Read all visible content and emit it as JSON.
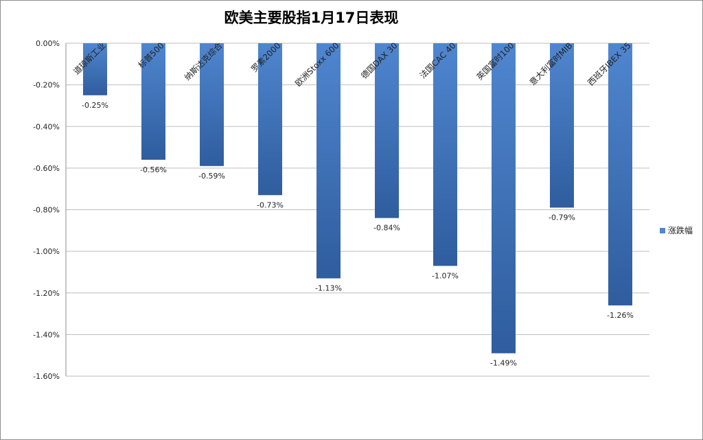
{
  "chart_data": {
    "type": "bar",
    "title": "欧美主要股指1月17日表现",
    "categories": [
      "道琼斯工业",
      "标普500",
      "纳斯达克综合",
      "罗素2000",
      "欧洲Stoxx 600",
      "德国DAX 30",
      "法国CAC 40",
      "英国富时100",
      "意大利富时MIB",
      "西班牙IBEX 35"
    ],
    "series": [
      {
        "name": "涨跌幅",
        "values": [
          -0.25,
          -0.56,
          -0.59,
          -0.73,
          -1.13,
          -0.84,
          -1.07,
          -1.49,
          -0.79,
          -1.26
        ],
        "data_labels": [
          "-0.25%",
          "-0.56%",
          "-0.59%",
          "-0.73%",
          "-1.13%",
          "-0.84%",
          "-1.07%",
          "-1.49%",
          "-0.79%",
          "-1.26%"
        ]
      }
    ],
    "ylim": [
      -1.6,
      0
    ],
    "yticks": [
      0,
      -0.2,
      -0.4,
      -0.6,
      -0.8,
      -1.0,
      -1.2,
      -1.4,
      -1.6
    ],
    "ytick_labels": [
      "0.00%",
      "-0.20%",
      "-0.40%",
      "-0.60%",
      "-0.80%",
      "-1.00%",
      "-1.20%",
      "-1.40%",
      "-1.60%"
    ],
    "grid": true,
    "legend_position": "right",
    "colors": {
      "bar_light": "#4f86cf",
      "bar_dark": "#2f5d9e",
      "grid": "#bdbdbd"
    }
  }
}
